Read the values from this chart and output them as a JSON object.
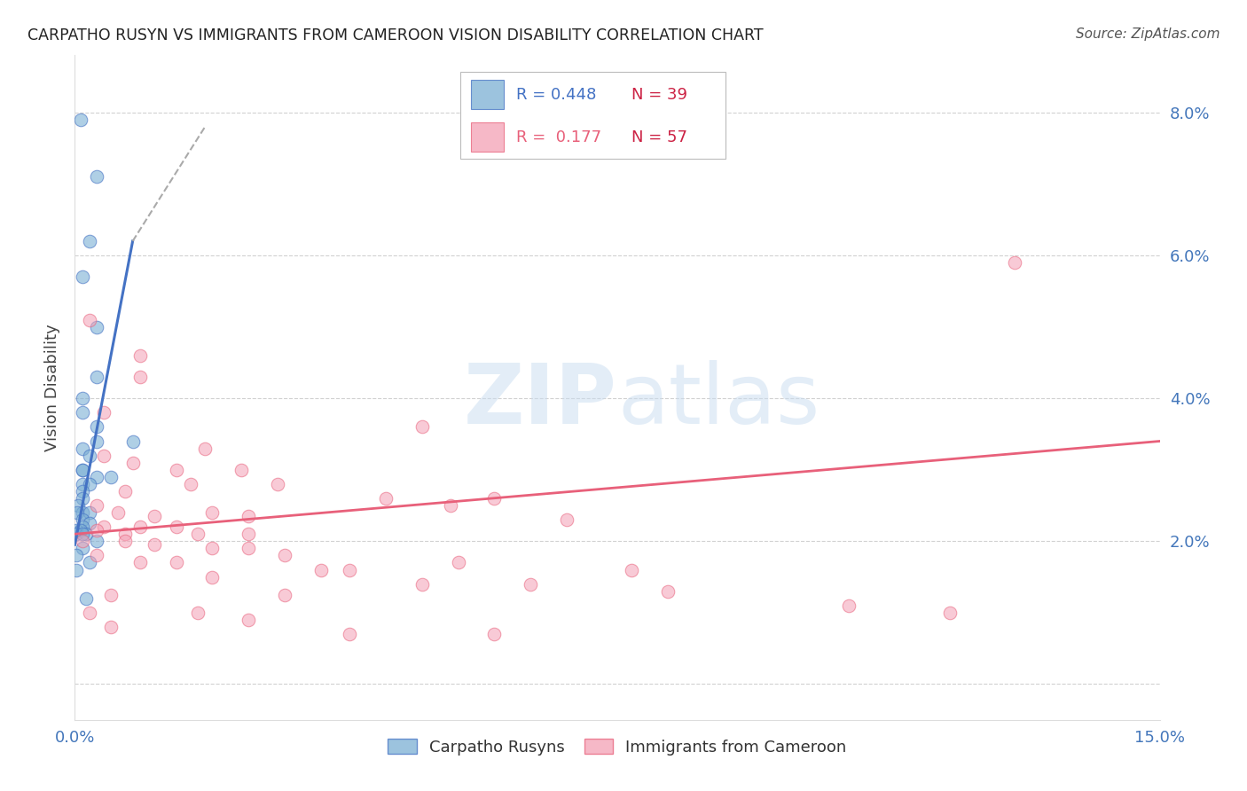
{
  "title": "CARPATHO RUSYN VS IMMIGRANTS FROM CAMEROON VISION DISABILITY CORRELATION CHART",
  "source": "Source: ZipAtlas.com",
  "ylabel": "Vision Disability",
  "xmin": 0.0,
  "xmax": 0.15,
  "ymin": -0.005,
  "ymax": 0.088,
  "yticks": [
    0.0,
    0.02,
    0.04,
    0.06,
    0.08
  ],
  "ytick_labels": [
    "",
    "2.0%",
    "4.0%",
    "6.0%",
    "8.0%"
  ],
  "xticks": [
    0.0,
    0.05,
    0.1,
    0.15
  ],
  "xtick_labels": [
    "0.0%",
    "",
    "",
    "15.0%"
  ],
  "blue_color": "#7BAFD4",
  "pink_color": "#F4A0B5",
  "blue_line_color": "#4472C4",
  "pink_line_color": "#E8607A",
  "blue_scatter": [
    [
      0.0008,
      0.079
    ],
    [
      0.003,
      0.071
    ],
    [
      0.002,
      0.062
    ],
    [
      0.001,
      0.057
    ],
    [
      0.003,
      0.05
    ],
    [
      0.003,
      0.043
    ],
    [
      0.001,
      0.04
    ],
    [
      0.001,
      0.038
    ],
    [
      0.003,
      0.036
    ],
    [
      0.003,
      0.034
    ],
    [
      0.008,
      0.034
    ],
    [
      0.001,
      0.033
    ],
    [
      0.002,
      0.032
    ],
    [
      0.001,
      0.03
    ],
    [
      0.001,
      0.03
    ],
    [
      0.003,
      0.029
    ],
    [
      0.005,
      0.029
    ],
    [
      0.001,
      0.028
    ],
    [
      0.002,
      0.028
    ],
    [
      0.001,
      0.027
    ],
    [
      0.001,
      0.026
    ],
    [
      0.0005,
      0.025
    ],
    [
      0.001,
      0.024
    ],
    [
      0.0003,
      0.024
    ],
    [
      0.002,
      0.024
    ],
    [
      0.001,
      0.023
    ],
    [
      0.002,
      0.0225
    ],
    [
      0.001,
      0.022
    ],
    [
      0.0002,
      0.0215
    ],
    [
      0.0008,
      0.0215
    ],
    [
      0.0002,
      0.021
    ],
    [
      0.0015,
      0.021
    ],
    [
      0.001,
      0.021
    ],
    [
      0.003,
      0.02
    ],
    [
      0.001,
      0.019
    ],
    [
      0.0002,
      0.018
    ],
    [
      0.002,
      0.017
    ],
    [
      0.0002,
      0.016
    ],
    [
      0.0015,
      0.012
    ]
  ],
  "pink_scatter": [
    [
      0.13,
      0.059
    ],
    [
      0.002,
      0.051
    ],
    [
      0.009,
      0.046
    ],
    [
      0.009,
      0.043
    ],
    [
      0.004,
      0.038
    ],
    [
      0.048,
      0.036
    ],
    [
      0.018,
      0.033
    ],
    [
      0.004,
      0.032
    ],
    [
      0.008,
      0.031
    ],
    [
      0.023,
      0.03
    ],
    [
      0.014,
      0.03
    ],
    [
      0.016,
      0.028
    ],
    [
      0.028,
      0.028
    ],
    [
      0.007,
      0.027
    ],
    [
      0.043,
      0.026
    ],
    [
      0.058,
      0.026
    ],
    [
      0.052,
      0.025
    ],
    [
      0.003,
      0.025
    ],
    [
      0.006,
      0.024
    ],
    [
      0.019,
      0.024
    ],
    [
      0.011,
      0.0235
    ],
    [
      0.024,
      0.0235
    ],
    [
      0.068,
      0.023
    ],
    [
      0.004,
      0.022
    ],
    [
      0.009,
      0.022
    ],
    [
      0.014,
      0.022
    ],
    [
      0.003,
      0.0215
    ],
    [
      0.007,
      0.021
    ],
    [
      0.017,
      0.021
    ],
    [
      0.024,
      0.021
    ],
    [
      0.001,
      0.02
    ],
    [
      0.007,
      0.02
    ],
    [
      0.011,
      0.0195
    ],
    [
      0.019,
      0.019
    ],
    [
      0.024,
      0.019
    ],
    [
      0.029,
      0.018
    ],
    [
      0.003,
      0.018
    ],
    [
      0.053,
      0.017
    ],
    [
      0.009,
      0.017
    ],
    [
      0.014,
      0.017
    ],
    [
      0.034,
      0.016
    ],
    [
      0.038,
      0.016
    ],
    [
      0.077,
      0.016
    ],
    [
      0.019,
      0.015
    ],
    [
      0.048,
      0.014
    ],
    [
      0.063,
      0.014
    ],
    [
      0.082,
      0.013
    ],
    [
      0.005,
      0.0125
    ],
    [
      0.029,
      0.0125
    ],
    [
      0.107,
      0.011
    ],
    [
      0.121,
      0.01
    ],
    [
      0.002,
      0.01
    ],
    [
      0.017,
      0.01
    ],
    [
      0.024,
      0.009
    ],
    [
      0.005,
      0.008
    ],
    [
      0.038,
      0.007
    ],
    [
      0.058,
      0.007
    ]
  ],
  "background_color": "#FFFFFF",
  "grid_color": "#CCCCCC",
  "tick_color": "#4477BB",
  "watermark_color": "#C8DCF0",
  "watermark_alpha": 0.5
}
